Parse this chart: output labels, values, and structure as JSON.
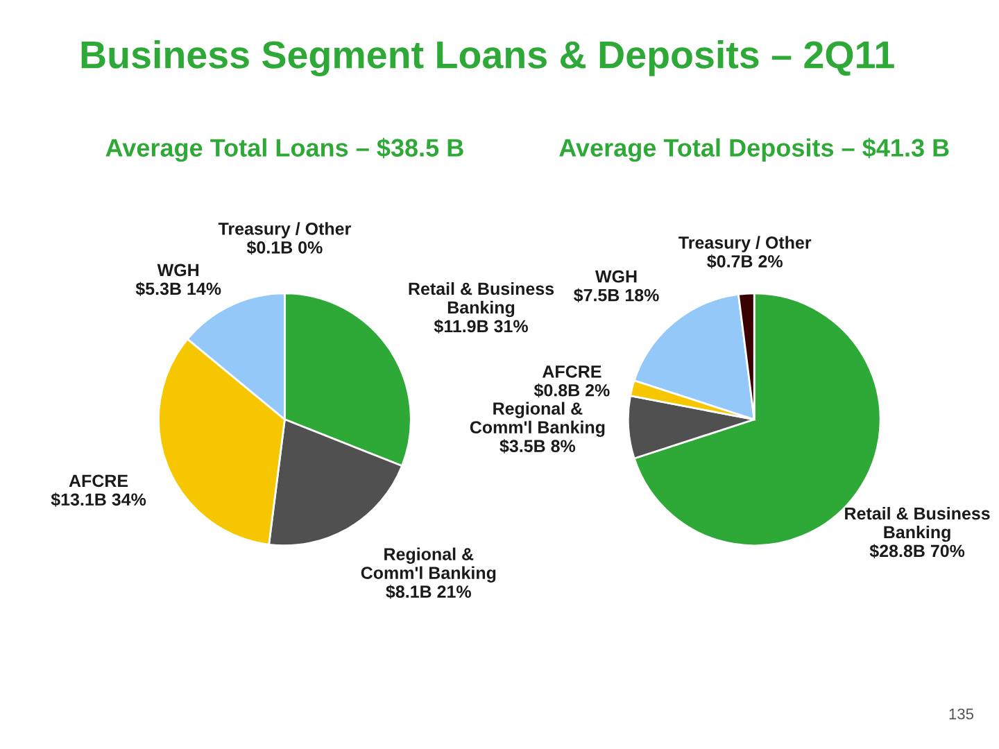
{
  "chart_data": [
    {
      "type": "pie",
      "title": "Business Segment Loans & Deposits – 2Q11",
      "subtitle": "Average Total Loans – $38.5 B",
      "categories": [
        "Retail & Business\nBanking",
        "Regional &\nComm'l Banking",
        "AFCRE",
        "WGH",
        "Treasury / Other"
      ],
      "values": [
        31,
        21,
        34,
        14,
        0
      ],
      "colors": [
        "#2ea836",
        "#505050",
        "#f6c700",
        "#94c8f8",
        "#e8e8e8"
      ],
      "value_labels": [
        "$11.9B 31%",
        "$8.1B 21%",
        "$13.1B 34%",
        "$5.3B 14%",
        "$0.1B 0%"
      ]
    },
    {
      "type": "pie",
      "subtitle": "Average Total Deposits – $41.3 B",
      "categories": [
        "Retail & Business\nBanking",
        "Regional &\nComm'l Banking",
        "AFCRE",
        "WGH",
        "Treasury / Other"
      ],
      "values": [
        70,
        8,
        2,
        18,
        2
      ],
      "colors": [
        "#2ea836",
        "#505050",
        "#f6c700",
        "#94c8f8",
        "#3a0000"
      ],
      "value_labels": [
        "$28.8B 70%",
        "$3.5B 8%",
        "$0.8B 2%",
        "$7.5B 18%",
        "$0.7B 2%"
      ],
      "annotations": [
        "135"
      ]
    }
  ]
}
